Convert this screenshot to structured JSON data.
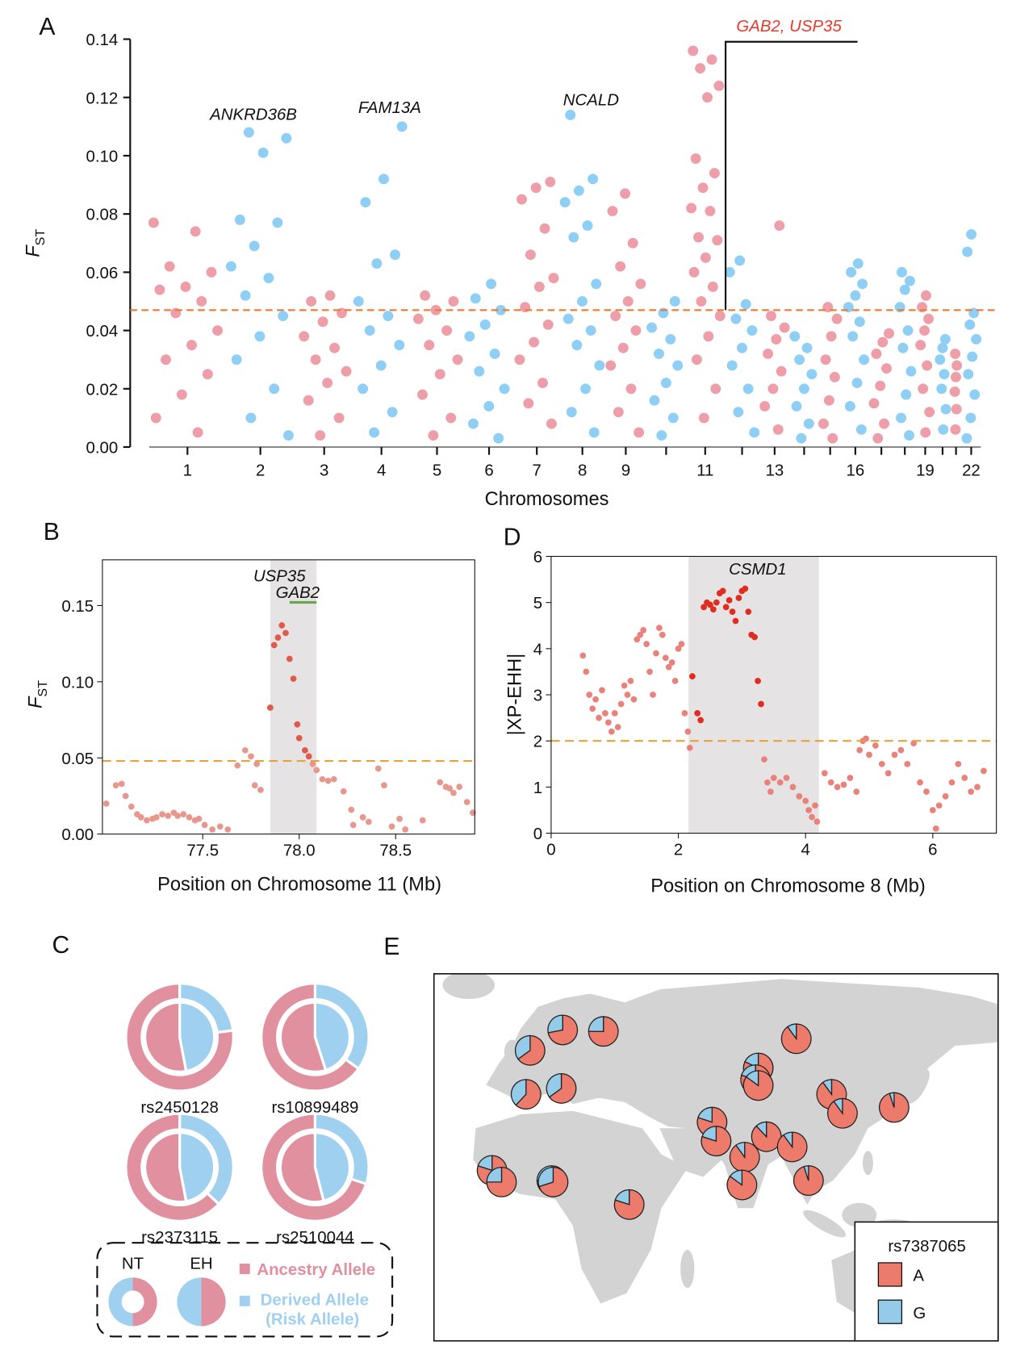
{
  "chart_data": [
    {
      "type": "manhattan",
      "panel": "A",
      "xlabel": "Chromosomes",
      "ylabel": "F",
      "ylabel_sub": "ST",
      "categories": [
        "1",
        "2",
        "3",
        "4",
        "5",
        "6",
        "7",
        "8",
        "9",
        null,
        "11",
        null,
        "13",
        null,
        null,
        "16",
        null,
        null,
        "19",
        null,
        null,
        "22"
      ],
      "values": [
        [
          0.077,
          0.074,
          0.062,
          0.06,
          0.055,
          0.054,
          0.05,
          0.046,
          0.04,
          0.035,
          0.03,
          0.025,
          0.018,
          0.01,
          0.005
        ],
        [
          0.108,
          0.106,
          0.101,
          0.078,
          0.077,
          0.069,
          0.062,
          0.058,
          0.052,
          0.045,
          0.038,
          0.03,
          0.02,
          0.01,
          0.004
        ],
        [
          0.052,
          0.05,
          0.046,
          0.043,
          0.038,
          0.034,
          0.03,
          0.026,
          0.022,
          0.016,
          0.01,
          0.004
        ],
        [
          0.11,
          0.092,
          0.084,
          0.066,
          0.063,
          0.05,
          0.045,
          0.04,
          0.035,
          0.028,
          0.02,
          0.012,
          0.005
        ],
        [
          0.052,
          0.05,
          0.047,
          0.044,
          0.04,
          0.035,
          0.03,
          0.025,
          0.018,
          0.01,
          0.004
        ],
        [
          0.056,
          0.051,
          0.047,
          0.042,
          0.038,
          0.032,
          0.026,
          0.02,
          0.014,
          0.008,
          0.003
        ],
        [
          0.091,
          0.089,
          0.085,
          0.075,
          0.066,
          0.058,
          0.055,
          0.048,
          0.042,
          0.036,
          0.03,
          0.022,
          0.015,
          0.008
        ],
        [
          0.114,
          0.092,
          0.088,
          0.084,
          0.076,
          0.072,
          0.056,
          0.05,
          0.044,
          0.04,
          0.035,
          0.028,
          0.02,
          0.012,
          0.005
        ],
        [
          0.087,
          0.081,
          0.07,
          0.062,
          0.056,
          0.05,
          0.045,
          0.04,
          0.034,
          0.028,
          0.02,
          0.012,
          0.005
        ],
        [
          0.05,
          0.046,
          0.041,
          0.037,
          0.032,
          0.028,
          0.022,
          0.016,
          0.01,
          0.004
        ],
        [
          0.136,
          0.133,
          0.13,
          0.124,
          0.12,
          0.099,
          0.094,
          0.089,
          0.082,
          0.081,
          0.072,
          0.071,
          0.065,
          0.06,
          0.055,
          0.05,
          0.045,
          0.038,
          0.03,
          0.02,
          0.01
        ],
        [
          0.064,
          0.06,
          0.049,
          0.044,
          0.04,
          0.034,
          0.028,
          0.02,
          0.012,
          0.005
        ],
        [
          0.076,
          0.045,
          0.041,
          0.037,
          0.032,
          0.026,
          0.02,
          0.014,
          0.006
        ],
        [
          0.038,
          0.034,
          0.03,
          0.025,
          0.02,
          0.014,
          0.008,
          0.003
        ],
        [
          0.048,
          0.044,
          0.038,
          0.03,
          0.024,
          0.016,
          0.008,
          0.003
        ],
        [
          0.063,
          0.06,
          0.056,
          0.052,
          0.048,
          0.043,
          0.038,
          0.03,
          0.022,
          0.014,
          0.006
        ],
        [
          0.039,
          0.036,
          0.032,
          0.027,
          0.021,
          0.015,
          0.008,
          0.003
        ],
        [
          0.06,
          0.057,
          0.054,
          0.048,
          0.04,
          0.034,
          0.026,
          0.018,
          0.01,
          0.004
        ],
        [
          0.052,
          0.048,
          0.044,
          0.04,
          0.035,
          0.028,
          0.02,
          0.012,
          0.005
        ],
        [
          0.037,
          0.034,
          0.03,
          0.025,
          0.02,
          0.013,
          0.006
        ],
        [
          0.032,
          0.028,
          0.024,
          0.019,
          0.013,
          0.006
        ],
        [
          0.073,
          0.067,
          0.046,
          0.042,
          0.037,
          0.031,
          0.025,
          0.018,
          0.01,
          0.003
        ]
      ],
      "colors": [
        "#ee9ea9",
        "#8fcef5"
      ],
      "ylim": [
        0,
        0.14
      ],
      "yticks": [
        {
          "value": 0,
          "label": "0.00"
        },
        {
          "value": 0.02,
          "label": "0.02"
        },
        {
          "value": 0.04,
          "label": "0.04"
        },
        {
          "value": 0.06,
          "label": "0.06"
        },
        {
          "value": 0.08,
          "label": "0.08"
        },
        {
          "value": 0.1,
          "label": "0.10"
        },
        {
          "value": 0.12,
          "label": "0.12"
        },
        {
          "value": 0.14,
          "label": "0.14"
        }
      ],
      "threshold": 0.047,
      "threshold_color": "#f07a2a",
      "annotations": [
        "ANKRD36B",
        "FAM13A",
        "NCALD"
      ],
      "highlight": {
        "text": "GAB2, USP35",
        "color": "#e8392b"
      }
    },
    {
      "type": "scatter",
      "panel": "B",
      "xlabel": "Position on Chromosome 11 (Mb)",
      "ylabel": "F",
      "ylabel_sub": "ST",
      "x": [
        77.0,
        77.05,
        77.08,
        77.1,
        77.13,
        77.16,
        77.18,
        77.21,
        77.24,
        77.26,
        77.29,
        77.32,
        77.35,
        77.37,
        77.4,
        77.43,
        77.46,
        77.48,
        77.51,
        77.55,
        77.59,
        77.63,
        77.68,
        77.72,
        77.75,
        77.78,
        77.77,
        77.8,
        77.85,
        77.87,
        77.89,
        77.91,
        77.93,
        77.95,
        77.97,
        77.99,
        78.0,
        78.03,
        78.05,
        78.07,
        78.09,
        78.12,
        78.15,
        78.18,
        78.23,
        78.27,
        78.28,
        78.33,
        78.36,
        78.41,
        78.44,
        78.48,
        78.52,
        78.55,
        78.64,
        78.73,
        78.76,
        78.78,
        78.8,
        78.83,
        78.87,
        78.9
      ],
      "values": [
        0.02,
        0.032,
        0.033,
        0.025,
        0.018,
        0.013,
        0.011,
        0.009,
        0.01,
        0.011,
        0.013,
        0.012,
        0.014,
        0.012,
        0.013,
        0.011,
        0.009,
        0.01,
        0.006,
        0.003,
        0.005,
        0.003,
        0.045,
        0.055,
        0.051,
        0.046,
        0.032,
        0.029,
        0.083,
        0.124,
        0.129,
        0.137,
        0.132,
        0.115,
        0.102,
        0.072,
        0.063,
        0.055,
        0.051,
        0.046,
        0.042,
        0.036,
        0.035,
        0.036,
        0.028,
        0.016,
        0.006,
        0.011,
        0.008,
        0.043,
        0.032,
        0.005,
        0.01,
        0.003,
        0.009,
        0.034,
        0.031,
        0.03,
        0.027,
        0.031,
        0.021,
        0.014
      ],
      "color": "#e8978f",
      "highlight_color": "#e05a4c",
      "xlim": [
        76.98,
        78.91
      ],
      "ylim": [
        0,
        0.18
      ],
      "xticks": [
        77.5,
        {
          "value": 78,
          "label": "78.0"
        },
        78.5
      ],
      "yticks": [
        {
          "value": 0,
          "label": "0.00"
        },
        {
          "value": 0.05,
          "label": "0.05"
        },
        {
          "value": 0.1,
          "label": "0.10"
        },
        {
          "value": 0.15,
          "label": "0.15"
        }
      ],
      "threshold": 0.048,
      "threshold_color": "#e8a23a",
      "highlight": [
        77.85,
        78.09
      ],
      "genes": [
        {
          "name": "USP35",
          "start": 77.93,
          "end": 77.94
        },
        {
          "name": "GAB2",
          "start": 77.95,
          "end": 78.09
        }
      ],
      "gene_color": "#6aa84f"
    },
    {
      "type": "pie",
      "panel": "C",
      "rings": [
        "NT",
        "EH"
      ],
      "series": [
        {
          "name": "Ancestry Allele",
          "color": "#e0909e"
        },
        {
          "name": "Derived Allele",
          "note": "(Risk Allele)",
          "color": "#9fd0f0"
        }
      ],
      "snps": [
        {
          "name": "rs2450128",
          "outer": [
            77,
            23
          ],
          "inner": [
            53,
            47
          ]
        },
        {
          "name": "rs10899489",
          "outer": [
            65,
            35
          ],
          "inner": [
            55,
            45
          ]
        },
        {
          "name": "rs2373115",
          "outer": [
            63,
            37
          ],
          "inner": [
            53,
            47
          ]
        },
        {
          "name": "rs2510044",
          "outer": [
            70,
            30
          ],
          "inner": [
            54,
            46
          ]
        }
      ]
    },
    {
      "type": "scatter",
      "panel": "D",
      "xlabel": "Position on Chromosome 8 (Mb)",
      "ylabel": "|XP-EHH|",
      "x": [
        0.5,
        0.55,
        0.6,
        0.65,
        0.7,
        0.75,
        0.8,
        0.85,
        0.9,
        0.95,
        1.0,
        1.05,
        1.1,
        1.15,
        1.2,
        1.25,
        1.3,
        1.35,
        1.4,
        1.45,
        1.5,
        1.55,
        1.6,
        1.65,
        1.7,
        1.75,
        1.8,
        1.85,
        1.9,
        1.95,
        2.0,
        2.05,
        2.1,
        2.15,
        2.18,
        2.22,
        2.3,
        2.35,
        2.4,
        2.45,
        2.5,
        2.55,
        2.6,
        2.65,
        2.7,
        2.75,
        2.8,
        2.85,
        2.9,
        2.95,
        3.0,
        3.05,
        3.1,
        3.15,
        3.2,
        3.25,
        3.3,
        3.35,
        3.4,
        3.45,
        3.5,
        3.6,
        3.7,
        3.8,
        3.9,
        4.0,
        4.05,
        4.1,
        4.15,
        4.18,
        4.3,
        4.4,
        4.5,
        4.6,
        4.7,
        4.8,
        4.85,
        4.9,
        4.95,
        5.0,
        5.1,
        5.2,
        5.3,
        5.4,
        5.5,
        5.6,
        5.7,
        5.8,
        5.9,
        6.0,
        6.05,
        6.1,
        6.2,
        6.3,
        6.4,
        6.5,
        6.6,
        6.7,
        6.8
      ],
      "values": [
        3.85,
        3.5,
        3.0,
        2.7,
        2.9,
        2.5,
        3.1,
        2.6,
        2.4,
        2.2,
        2.6,
        2.3,
        2.8,
        3.2,
        3.0,
        3.3,
        2.9,
        4.2,
        4.3,
        4.4,
        4.1,
        3.5,
        3.0,
        3.9,
        4.45,
        4.3,
        3.8,
        3.6,
        3.7,
        3.3,
        4.0,
        4.1,
        2.6,
        2.2,
        1.85,
        3.4,
        2.6,
        2.45,
        4.9,
        5.0,
        4.95,
        4.85,
        5.0,
        5.2,
        5.25,
        4.9,
        5.05,
        4.8,
        4.6,
        5.1,
        5.25,
        5.3,
        4.8,
        4.3,
        4.25,
        3.3,
        2.8,
        1.6,
        1.1,
        0.9,
        1.2,
        1.1,
        1.2,
        1.0,
        0.8,
        0.7,
        0.5,
        0.35,
        0.6,
        0.25,
        1.3,
        1.1,
        1.0,
        1.05,
        1.2,
        0.9,
        1.8,
        2.0,
        2.05,
        1.7,
        1.9,
        1.5,
        1.3,
        1.7,
        1.8,
        1.5,
        1.95,
        1.1,
        0.9,
        0.5,
        0.1,
        0.6,
        0.8,
        1.1,
        1.5,
        1.2,
        0.9,
        1.0,
        1.35
      ],
      "color": "#e8827a",
      "highlight_color": "#e02d1f",
      "xlim": [
        0,
        7.0
      ],
      "ylim": [
        0,
        6
      ],
      "xticks": [
        0,
        2,
        4,
        6
      ],
      "yticks": [
        0,
        1,
        2,
        3,
        4,
        5,
        6
      ],
      "threshold": 2,
      "threshold_color": "#e8a23a",
      "highlight": [
        2.16,
        4.21
      ],
      "genes": [
        {
          "name": "CSMD1"
        }
      ]
    },
    {
      "type": "map",
      "panel": "E",
      "legend_title": "rs7387065",
      "series": [
        {
          "name": "A",
          "color": "#ec7b6c"
        },
        {
          "name": "G",
          "color": "#93cbe9"
        }
      ],
      "populations": [
        {
          "lon": 16,
          "lat": 58,
          "values": [
            72,
            28
          ]
        },
        {
          "lon": 31,
          "lat": 57.5,
          "values": [
            75,
            25
          ]
        },
        {
          "lon": 4,
          "lat": 51,
          "values": [
            65,
            35
          ]
        },
        {
          "lon": 15.5,
          "lat": 38,
          "values": [
            65,
            35
          ]
        },
        {
          "lon": 2.5,
          "lat": 36,
          "values": [
            62,
            38
          ]
        },
        {
          "lon": 102,
          "lat": 55,
          "values": [
            90,
            10
          ]
        },
        {
          "lon": 88,
          "lat": 45,
          "values": [
            82,
            18
          ]
        },
        {
          "lon": 87,
          "lat": 41,
          "values": [
            80,
            20
          ]
        },
        {
          "lon": 88,
          "lat": 39,
          "values": [
            85,
            15
          ]
        },
        {
          "lon": 115,
          "lat": 36,
          "values": [
            90,
            10
          ]
        },
        {
          "lon": 119,
          "lat": 29.5,
          "values": [
            90,
            10
          ]
        },
        {
          "lon": 138,
          "lat": 31.5,
          "values": [
            95,
            5
          ]
        },
        {
          "lon": 71,
          "lat": 26.5,
          "values": [
            80,
            20
          ]
        },
        {
          "lon": 72.5,
          "lat": 20,
          "values": [
            80,
            20
          ]
        },
        {
          "lon": 91,
          "lat": 21.5,
          "values": [
            88,
            12
          ]
        },
        {
          "lon": 83,
          "lat": 14.5,
          "values": [
            90,
            10
          ]
        },
        {
          "lon": 100.5,
          "lat": 18,
          "values": [
            90,
            10
          ]
        },
        {
          "lon": 106.5,
          "lat": 6.5,
          "values": [
            95,
            5
          ]
        },
        {
          "lon": -10,
          "lat": 10,
          "values": [
            80,
            20
          ]
        },
        {
          "lon": -6.5,
          "lat": 6,
          "values": [
            75,
            25
          ]
        },
        {
          "lon": 12,
          "lat": 6.5,
          "values": [
            75,
            25
          ]
        },
        {
          "lon": 12.5,
          "lat": 6,
          "values": [
            70,
            30
          ]
        },
        {
          "lon": 82,
          "lat": 5,
          "values": [
            85,
            15
          ]
        },
        {
          "lon": 40.5,
          "lat": -1.7,
          "values": [
            80,
            20
          ]
        }
      ]
    }
  ]
}
